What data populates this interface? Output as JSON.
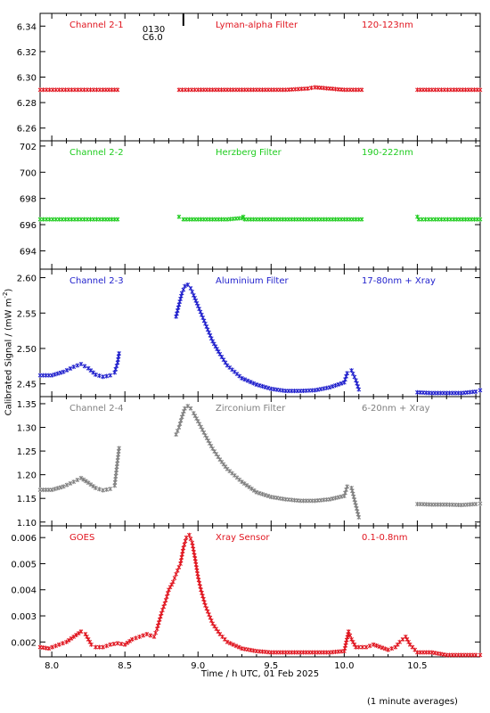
{
  "chart_data": [
    {
      "type": "scatter",
      "panel_label": "Channel 2-1",
      "filter_label": "Lyman-alpha Filter",
      "range_label": "120-123nm",
      "color": "#e0141e",
      "ylim": [
        6.25,
        6.35
      ],
      "yticks": [
        6.26,
        6.28,
        6.3,
        6.32,
        6.34
      ],
      "ytick_labels": [
        "6.26",
        "6.28",
        "6.30",
        "6.32",
        "6.34"
      ],
      "event_marker": {
        "x": 8.9,
        "label_top": "0130",
        "label_bottom": "C6.0"
      },
      "series": [
        {
          "x": [
            7.92,
            8.05,
            8.2,
            8.35,
            8.45
          ],
          "y": [
            6.29,
            6.29,
            6.29,
            6.29,
            6.29
          ]
        },
        {
          "x": [
            8.87,
            9.0,
            9.2,
            9.4,
            9.6,
            9.75,
            9.8,
            9.9,
            10.0,
            10.12
          ],
          "y": [
            6.29,
            6.29,
            6.29,
            6.29,
            6.29,
            6.291,
            6.292,
            6.291,
            6.29,
            6.29
          ]
        },
        {
          "x": [
            10.5,
            10.6,
            10.75,
            10.93
          ],
          "y": [
            6.29,
            6.29,
            6.29,
            6.29
          ]
        }
      ]
    },
    {
      "type": "scatter",
      "panel_label": "Channel 2-2",
      "filter_label": "Herzberg Filter",
      "range_label": "190-222nm",
      "color": "#1ecc1e",
      "ylim": [
        692.6,
        702.4
      ],
      "yticks": [
        694,
        696,
        698,
        700,
        702
      ],
      "ytick_labels": [
        "694",
        "696",
        "698",
        "700",
        "702"
      ],
      "series": [
        {
          "x": [
            7.92,
            8.05,
            8.2,
            8.35,
            8.45
          ],
          "y": [
            696.4,
            696.4,
            696.4,
            696.4,
            696.4
          ]
        },
        {
          "x": [
            8.87,
            8.9,
            9.0,
            9.2,
            9.3,
            9.31,
            9.32,
            9.4,
            9.6,
            9.8,
            10.0,
            10.12
          ],
          "y": [
            696.6,
            696.4,
            696.4,
            696.4,
            696.5,
            696.6,
            696.4,
            696.4,
            696.4,
            696.4,
            696.4,
            696.4
          ]
        },
        {
          "x": [
            10.5,
            10.51,
            10.6,
            10.75,
            10.93
          ],
          "y": [
            696.6,
            696.4,
            696.4,
            696.4,
            696.4
          ]
        }
      ]
    },
    {
      "type": "scatter",
      "panel_label": "Channel 2-3",
      "filter_label": "Aluminium Filter",
      "range_label": "17-80nm + Xray",
      "color": "#1e1ecc",
      "ylim": [
        2.432,
        2.612
      ],
      "yticks": [
        2.45,
        2.5,
        2.55,
        2.6
      ],
      "ytick_labels": [
        "2.45",
        "2.50",
        "2.55",
        "2.60"
      ],
      "series": [
        {
          "x": [
            7.92,
            8.0,
            8.08,
            8.15,
            8.2,
            8.25,
            8.3,
            8.35,
            8.4,
            8.43,
            8.45,
            8.46
          ],
          "y": [
            2.462,
            2.462,
            2.467,
            2.474,
            2.478,
            2.472,
            2.463,
            2.46,
            2.462,
            2.466,
            2.48,
            2.493
          ]
        },
        {
          "x": [
            8.85,
            8.87,
            8.89,
            8.91,
            8.93,
            8.95,
            8.97,
            9.0,
            9.05,
            9.1,
            9.15,
            9.2,
            9.3,
            9.4,
            9.5,
            9.6,
            9.7,
            9.8,
            9.9,
            10.0,
            10.02,
            10.05,
            10.08,
            10.1
          ],
          "y": [
            2.545,
            2.562,
            2.578,
            2.588,
            2.59,
            2.585,
            2.575,
            2.56,
            2.535,
            2.51,
            2.492,
            2.476,
            2.458,
            2.449,
            2.443,
            2.44,
            2.44,
            2.441,
            2.445,
            2.452,
            2.465,
            2.469,
            2.455,
            2.442
          ]
        },
        {
          "x": [
            10.5,
            10.6,
            10.7,
            10.8,
            10.9,
            10.93
          ],
          "y": [
            2.438,
            2.437,
            2.437,
            2.437,
            2.439,
            2.441
          ]
        }
      ]
    },
    {
      "type": "scatter",
      "panel_label": "Channel 2-4",
      "filter_label": "Zirconium Filter",
      "range_label": "6-20nm + Xray",
      "color": "#808080",
      "ylim": [
        1.092,
        1.365
      ],
      "yticks": [
        1.1,
        1.15,
        1.2,
        1.25,
        1.3,
        1.35
      ],
      "ytick_labels": [
        "1.10",
        "1.15",
        "1.20",
        "1.25",
        "1.30",
        "1.35"
      ],
      "series": [
        {
          "x": [
            7.92,
            8.0,
            8.08,
            8.15,
            8.2,
            8.25,
            8.3,
            8.35,
            8.4,
            8.43,
            8.45,
            8.46
          ],
          "y": [
            1.168,
            1.168,
            1.175,
            1.185,
            1.193,
            1.183,
            1.172,
            1.167,
            1.17,
            1.177,
            1.23,
            1.256
          ]
        },
        {
          "x": [
            8.85,
            8.87,
            8.89,
            8.91,
            8.93,
            8.95,
            8.97,
            9.0,
            9.05,
            9.1,
            9.15,
            9.2,
            9.3,
            9.4,
            9.5,
            9.6,
            9.7,
            9.8,
            9.9,
            10.0,
            10.02,
            10.05,
            10.08,
            10.1
          ],
          "y": [
            1.285,
            1.3,
            1.322,
            1.34,
            1.345,
            1.34,
            1.33,
            1.313,
            1.283,
            1.255,
            1.232,
            1.212,
            1.185,
            1.163,
            1.153,
            1.148,
            1.145,
            1.145,
            1.148,
            1.155,
            1.175,
            1.172,
            1.135,
            1.11
          ]
        },
        {
          "x": [
            10.5,
            10.6,
            10.7,
            10.8,
            10.9,
            10.93
          ],
          "y": [
            1.138,
            1.137,
            1.137,
            1.136,
            1.138,
            1.139
          ]
        }
      ]
    },
    {
      "type": "scatter",
      "panel_label": "GOES",
      "filter_label": "Xray Sensor",
      "range_label": "0.1-0.8nm",
      "color": "#e0141e",
      "ylim": [
        0.00143,
        0.00645
      ],
      "yticks": [
        0.002,
        0.003,
        0.004,
        0.005,
        0.006
      ],
      "ytick_labels": [
        "0.002",
        "0.003",
        "0.004",
        "0.005",
        "0.006"
      ],
      "xlim": [
        7.92,
        10.93
      ],
      "xticks": [
        8.0,
        8.5,
        9.0,
        9.5,
        10.0,
        10.5
      ],
      "xtick_labels": [
        "8.0",
        "8.5",
        "9.0",
        "9.5",
        "10.0",
        "10.5"
      ],
      "series": [
        {
          "x": [
            7.92,
            7.98,
            8.05,
            8.1,
            8.15,
            8.2,
            8.23,
            8.27,
            8.3,
            8.35,
            8.4,
            8.45,
            8.5,
            8.55,
            8.6,
            8.65,
            8.7,
            8.72,
            8.75,
            8.78,
            8.8,
            8.83,
            8.85,
            8.88,
            8.9,
            8.92,
            8.94,
            8.96,
            8.98,
            9.0,
            9.02,
            9.05,
            9.1,
            9.15,
            9.2,
            9.3,
            9.4,
            9.5,
            9.6,
            9.7,
            9.8,
            9.9,
            10.0,
            10.03,
            10.05,
            10.08,
            10.1,
            10.15,
            10.2,
            10.3,
            10.35,
            10.38,
            10.42,
            10.45,
            10.5,
            10.6,
            10.7,
            10.8,
            10.9,
            10.93
          ],
          "y": [
            0.0018,
            0.00175,
            0.0019,
            0.002,
            0.0022,
            0.0024,
            0.0023,
            0.0019,
            0.0018,
            0.0018,
            0.0019,
            0.00195,
            0.0019,
            0.0021,
            0.0022,
            0.0023,
            0.0022,
            0.0025,
            0.0031,
            0.0036,
            0.004,
            0.0043,
            0.0046,
            0.005,
            0.0056,
            0.006,
            0.0061,
            0.0058,
            0.0052,
            0.0045,
            0.004,
            0.0034,
            0.0027,
            0.0023,
            0.002,
            0.00175,
            0.00165,
            0.0016,
            0.0016,
            0.0016,
            0.0016,
            0.0016,
            0.00165,
            0.0024,
            0.0021,
            0.0018,
            0.0018,
            0.0018,
            0.0019,
            0.0017,
            0.0018,
            0.002,
            0.0022,
            0.0019,
            0.0016,
            0.0016,
            0.0015,
            0.0015,
            0.0015,
            0.0015
          ]
        }
      ]
    }
  ],
  "labels": {
    "y_axis": "Calibrated Signal / (mW m",
    "y_axis_sup": "-2",
    "y_axis_end": ")",
    "x_axis": "Time / h UTC, 01 Feb 2025",
    "footnote": "(1 minute averages)"
  }
}
